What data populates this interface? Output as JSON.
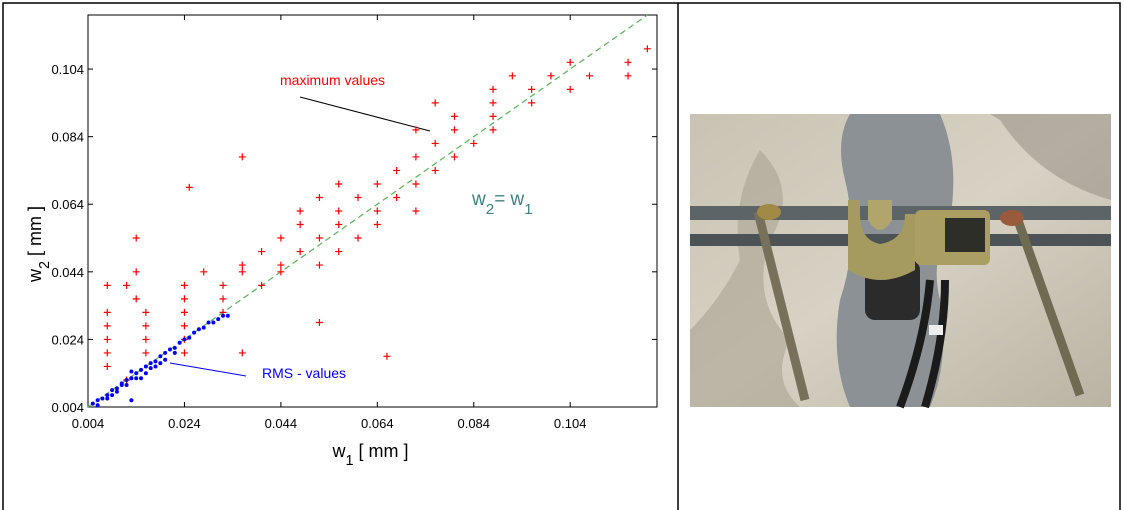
{
  "chart_data": {
    "type": "scatter",
    "x_label": [
      "w",
      "1",
      " [ mm ]"
    ],
    "y_label": [
      "w",
      "2",
      " [ mm ]"
    ],
    "xlim": [
      0.004,
      0.122
    ],
    "ylim": [
      0.004,
      0.12
    ],
    "xticks": [
      0.004,
      0.024,
      0.044,
      0.064,
      0.084,
      0.104
    ],
    "yticks": [
      0.004,
      0.024,
      0.044,
      0.064,
      0.084,
      0.104
    ],
    "series": [
      {
        "marker": "plus",
        "color": "#ff0000",
        "x": [
          0.12,
          0.104,
          0.116,
          0.092,
          0.1,
          0.108,
          0.116,
          0.088,
          0.096,
          0.104,
          0.076,
          0.088,
          0.096,
          0.08,
          0.088,
          0.072,
          0.08,
          0.088,
          0.076,
          0.084,
          0.036,
          0.072,
          0.08,
          0.068,
          0.076,
          0.056,
          0.064,
          0.072,
          0.025,
          0.052,
          0.06,
          0.068,
          0.048,
          0.056,
          0.064,
          0.072,
          0.048,
          0.056,
          0.064,
          0.014,
          0.044,
          0.052,
          0.06,
          0.04,
          0.048,
          0.056,
          0.036,
          0.044,
          0.052,
          0.014,
          0.028,
          0.036,
          0.044,
          0.008,
          0.012,
          0.024,
          0.032,
          0.04,
          0.014,
          0.024,
          0.032,
          0.008,
          0.016,
          0.024,
          0.032,
          0.052,
          0.008,
          0.016,
          0.024,
          0.008,
          0.016,
          0.024,
          0.008,
          0.016,
          0.024,
          0.036,
          0.066,
          0.008,
          0.012
        ],
        "values": [
          0.11,
          0.106,
          0.106,
          0.102,
          0.102,
          0.102,
          0.102,
          0.098,
          0.098,
          0.098,
          0.094,
          0.094,
          0.094,
          0.09,
          0.09,
          0.086,
          0.086,
          0.086,
          0.082,
          0.082,
          0.078,
          0.078,
          0.078,
          0.074,
          0.074,
          0.07,
          0.07,
          0.07,
          0.069,
          0.066,
          0.066,
          0.066,
          0.062,
          0.062,
          0.062,
          0.062,
          0.058,
          0.058,
          0.058,
          0.054,
          0.054,
          0.054,
          0.054,
          0.05,
          0.05,
          0.05,
          0.046,
          0.046,
          0.046,
          0.044,
          0.044,
          0.044,
          0.044,
          0.04,
          0.04,
          0.04,
          0.04,
          0.04,
          0.036,
          0.036,
          0.036,
          0.032,
          0.032,
          0.032,
          0.032,
          0.029,
          0.028,
          0.028,
          0.028,
          0.024,
          0.024,
          0.024,
          0.02,
          0.02,
          0.02,
          0.02,
          0.019,
          0.016,
          0.012
        ]
      },
      {
        "marker": "dot",
        "color": "#0000ff",
        "x": [
          0.005,
          0.006,
          0.007,
          0.008,
          0.009,
          0.01,
          0.011,
          0.012,
          0.013,
          0.014,
          0.015,
          0.016,
          0.017,
          0.018,
          0.019,
          0.02,
          0.021,
          0.022,
          0.023,
          0.024,
          0.025,
          0.026,
          0.027,
          0.028,
          0.029,
          0.03,
          0.031,
          0.032,
          0.033,
          0.006,
          0.008,
          0.01,
          0.012,
          0.014,
          0.016,
          0.018,
          0.02,
          0.022,
          0.013,
          0.015,
          0.017,
          0.019,
          0.013,
          0.009,
          0.011
        ],
        "values": [
          0.005,
          0.006,
          0.0065,
          0.0075,
          0.009,
          0.0095,
          0.011,
          0.012,
          0.0125,
          0.014,
          0.015,
          0.016,
          0.017,
          0.0175,
          0.019,
          0.02,
          0.021,
          0.0215,
          0.023,
          0.024,
          0.0245,
          0.026,
          0.027,
          0.0275,
          0.029,
          0.029,
          0.03,
          0.031,
          0.031,
          0.0045,
          0.0065,
          0.0085,
          0.0105,
          0.0125,
          0.014,
          0.016,
          0.018,
          0.02,
          0.0145,
          0.0125,
          0.0155,
          0.017,
          0.006,
          0.0075,
          0.0105
        ]
      }
    ],
    "reference_line": {
      "x": [
        0.004,
        0.12
      ],
      "values": [
        0.004,
        0.12
      ],
      "color": "#5fb85f",
      "dashed": true
    },
    "annotations": {
      "maximum": {
        "text": "maximum values",
        "color": "#ff0000"
      },
      "rms": {
        "text": "RMS - values",
        "color": "#0000ff"
      },
      "identity": {
        "parts": [
          "w",
          "2",
          "= w",
          "1"
        ],
        "color": "#3f8080"
      }
    }
  }
}
